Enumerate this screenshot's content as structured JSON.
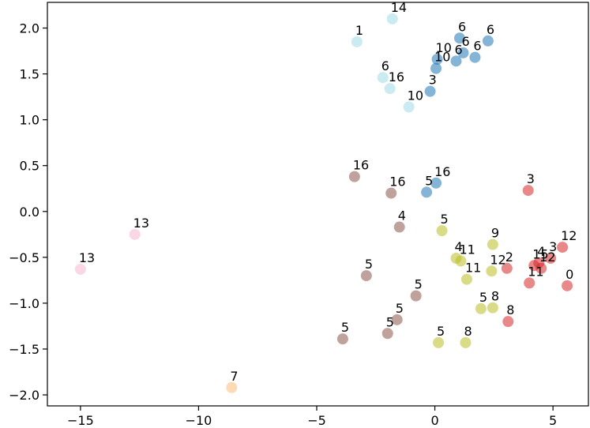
{
  "chart_data": {
    "type": "scatter",
    "title": "",
    "xlabel": "",
    "ylabel": "",
    "xlim": [
      -16.4,
      6.5
    ],
    "ylim": [
      -2.12,
      2.28
    ],
    "xticks": [
      -15,
      -10,
      -5,
      0,
      5
    ],
    "yticks": [
      -2.0,
      -1.5,
      -1.0,
      -0.5,
      0.0,
      0.5,
      1.0,
      1.5,
      2.0
    ],
    "xtick_labels": [
      "−15",
      "−10",
      "−5",
      "0",
      "5"
    ],
    "ytick_labels": [
      "−2.0",
      "−1.5",
      "−1.0",
      "−0.5",
      "0.0",
      "0.5",
      "1.0",
      "1.5",
      "2.0"
    ],
    "grid": false,
    "legend": "none",
    "colors": {
      "blue": "#1f77b4",
      "lightblue": "#9edae5",
      "brown": "#8c564b",
      "olive": "#bcbd22",
      "red": "#d62728",
      "pink": "#f7b6d2",
      "peach": "#ffbb78"
    },
    "points": [
      {
        "x": -1.8,
        "y": 2.1,
        "label": "14",
        "color": "lightblue"
      },
      {
        "x": -3.3,
        "y": 1.85,
        "label": "1",
        "color": "lightblue"
      },
      {
        "x": -2.2,
        "y": 1.46,
        "label": "6",
        "color": "lightblue"
      },
      {
        "x": -1.9,
        "y": 1.34,
        "label": "16",
        "color": "lightblue"
      },
      {
        "x": -1.1,
        "y": 1.14,
        "label": "10",
        "color": "lightblue"
      },
      {
        "x": 1.05,
        "y": 1.89,
        "label": "6",
        "color": "blue"
      },
      {
        "x": 2.25,
        "y": 1.86,
        "label": "6",
        "color": "blue"
      },
      {
        "x": 1.2,
        "y": 1.73,
        "label": "6",
        "color": "blue"
      },
      {
        "x": 1.7,
        "y": 1.68,
        "label": "6",
        "color": "blue"
      },
      {
        "x": 0.9,
        "y": 1.64,
        "label": "6",
        "color": "blue"
      },
      {
        "x": 0.1,
        "y": 1.66,
        "label": "10",
        "color": "blue"
      },
      {
        "x": 0.05,
        "y": 1.56,
        "label": "10",
        "color": "blue"
      },
      {
        "x": -0.2,
        "y": 1.31,
        "label": "3",
        "color": "blue"
      },
      {
        "x": 0.05,
        "y": 0.31,
        "label": "16",
        "color": "blue"
      },
      {
        "x": -0.35,
        "y": 0.21,
        "label": "5",
        "color": "blue"
      },
      {
        "x": -3.4,
        "y": 0.38,
        "label": "16",
        "color": "brown"
      },
      {
        "x": -1.85,
        "y": 0.2,
        "label": "16",
        "color": "brown"
      },
      {
        "x": -1.5,
        "y": -0.17,
        "label": "4",
        "color": "brown"
      },
      {
        "x": -2.9,
        "y": -0.7,
        "label": "5",
        "color": "brown"
      },
      {
        "x": -0.8,
        "y": -0.92,
        "label": "5",
        "color": "brown"
      },
      {
        "x": -1.6,
        "y": -1.18,
        "label": "5",
        "color": "brown"
      },
      {
        "x": -2.0,
        "y": -1.33,
        "label": "5",
        "color": "brown"
      },
      {
        "x": -3.9,
        "y": -1.39,
        "label": "5",
        "color": "brown"
      },
      {
        "x": 0.3,
        "y": -0.21,
        "label": "5",
        "color": "olive"
      },
      {
        "x": 2.45,
        "y": -0.36,
        "label": "9",
        "color": "olive"
      },
      {
        "x": 0.9,
        "y": -0.51,
        "label": "4",
        "color": "olive"
      },
      {
        "x": 1.1,
        "y": -0.54,
        "label": "11",
        "color": "olive"
      },
      {
        "x": 1.35,
        "y": -0.74,
        "label": "11",
        "color": "olive"
      },
      {
        "x": 2.4,
        "y": -0.65,
        "label": "12",
        "color": "olive"
      },
      {
        "x": 2.45,
        "y": -1.05,
        "label": "8",
        "color": "olive"
      },
      {
        "x": 1.95,
        "y": -1.06,
        "label": "5",
        "color": "olive"
      },
      {
        "x": 0.15,
        "y": -1.43,
        "label": "5",
        "color": "olive"
      },
      {
        "x": 1.3,
        "y": -1.43,
        "label": "8",
        "color": "olive"
      },
      {
        "x": 3.95,
        "y": 0.23,
        "label": "3",
        "color": "red"
      },
      {
        "x": 5.4,
        "y": -0.39,
        "label": "12",
        "color": "red"
      },
      {
        "x": 4.9,
        "y": -0.51,
        "label": "3",
        "color": "red"
      },
      {
        "x": 4.4,
        "y": -0.56,
        "label": "4",
        "color": "red"
      },
      {
        "x": 4.2,
        "y": -0.59,
        "label": "15",
        "color": "red"
      },
      {
        "x": 4.5,
        "y": -0.62,
        "label": "12",
        "color": "red"
      },
      {
        "x": 3.05,
        "y": -0.62,
        "label": "2",
        "color": "red"
      },
      {
        "x": 4.0,
        "y": -0.78,
        "label": "11",
        "color": "red"
      },
      {
        "x": 5.6,
        "y": -0.81,
        "label": "0",
        "color": "red"
      },
      {
        "x": 3.1,
        "y": -1.2,
        "label": "8",
        "color": "red"
      },
      {
        "x": -12.7,
        "y": -0.25,
        "label": "13",
        "color": "pink"
      },
      {
        "x": -15.0,
        "y": -0.63,
        "label": "13",
        "color": "pink"
      },
      {
        "x": -8.6,
        "y": -1.92,
        "label": "7",
        "color": "peach"
      }
    ]
  }
}
